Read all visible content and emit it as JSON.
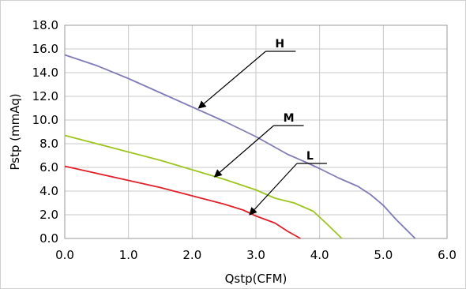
{
  "chart_data": {
    "type": "line",
    "title": "",
    "xlabel": "Qstp(CFM)",
    "ylabel": "Pstp (mmAq)",
    "xlim": [
      0,
      6
    ],
    "ylim": [
      0,
      18
    ],
    "xticks": [
      "0.0",
      "1.0",
      "2.0",
      "3.0",
      "4.0",
      "5.0",
      "6.0"
    ],
    "yticks": [
      "0.0",
      "2.0",
      "4.0",
      "6.0",
      "8.0",
      "10.0",
      "12.0",
      "14.0",
      "16.0",
      "18.0"
    ],
    "grid": true,
    "series": [
      {
        "name": "H",
        "color": "#7f7cb9",
        "x": [
          0,
          0.5,
          1.0,
          1.5,
          2.0,
          2.5,
          3.0,
          3.5,
          3.8,
          4.0,
          4.3,
          4.6,
          4.8,
          5.0,
          5.2,
          5.5
        ],
        "y": [
          15.5,
          14.6,
          13.5,
          12.3,
          11.1,
          9.9,
          8.6,
          7.1,
          6.4,
          5.9,
          5.1,
          4.4,
          3.7,
          2.8,
          1.6,
          0.0
        ],
        "annotation": {
          "x": 2.1,
          "y": 11.0,
          "label": "H"
        }
      },
      {
        "name": "M",
        "color": "#9dc51e",
        "x": [
          0,
          0.5,
          1.0,
          1.5,
          2.0,
          2.5,
          3.0,
          3.3,
          3.6,
          3.9,
          4.1,
          4.35
        ],
        "y": [
          8.7,
          8.0,
          7.3,
          6.6,
          5.8,
          5.0,
          4.1,
          3.4,
          3.0,
          2.3,
          1.3,
          0.0
        ],
        "annotation": {
          "x": 2.35,
          "y": 5.2,
          "label": "M"
        }
      },
      {
        "name": "L",
        "color": "#e0202a",
        "x": [
          0,
          0.5,
          1.0,
          1.5,
          2.0,
          2.5,
          2.8,
          3.0,
          3.3,
          3.5,
          3.7
        ],
        "y": [
          6.1,
          5.5,
          4.9,
          4.3,
          3.6,
          2.9,
          2.4,
          1.9,
          1.3,
          0.6,
          0.0
        ],
        "annotation": {
          "x": 2.9,
          "y": 2.0,
          "label": "L"
        }
      }
    ]
  }
}
